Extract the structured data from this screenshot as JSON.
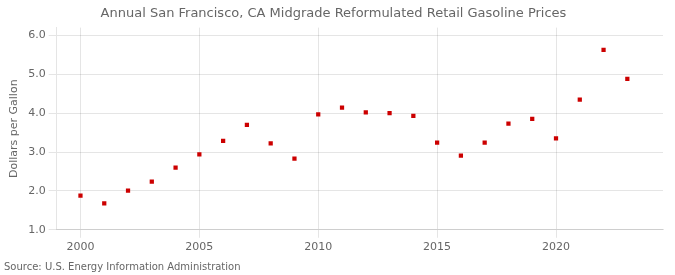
{
  "chart_data": {
    "type": "scatter",
    "title": "Annual San Francisco, CA Midgrade Reformulated Retail Gasoline Prices",
    "y_label": "Dollars per Gallon",
    "annotations": [
      "Source: U.S. Energy Information Administration"
    ],
    "x": [
      2000,
      2001,
      2002,
      2003,
      2004,
      2005,
      2006,
      2007,
      2008,
      2009,
      2010,
      2011,
      2012,
      2013,
      2014,
      2015,
      2016,
      2017,
      2018,
      2019,
      2020,
      2021,
      2022,
      2023
    ],
    "values": [
      1.88,
      1.68,
      2.01,
      2.24,
      2.6,
      2.94,
      3.29,
      3.7,
      3.22,
      2.83,
      3.97,
      4.14,
      4.02,
      4.0,
      3.93,
      3.24,
      2.91,
      3.24,
      3.73,
      3.85,
      3.35,
      4.35,
      5.63,
      4.88
    ],
    "color": "#cc0000",
    "marker": "square",
    "xlim": [
      1999,
      2024.5
    ],
    "xticks": [
      2000,
      2005,
      2010,
      2015,
      2020
    ],
    "ylim": [
      1.0,
      6.2
    ],
    "yticks": [
      {
        "value": 1.0,
        "label": "1.0"
      },
      {
        "value": 2.0,
        "label": "2.0"
      },
      {
        "value": 3.0,
        "label": "3.0"
      },
      {
        "value": 4.0,
        "label": "4.0"
      },
      {
        "value": 5.0,
        "label": "5.0"
      },
      {
        "value": 6.0,
        "label": "6.0"
      }
    ],
    "grid": true,
    "legend": false
  }
}
